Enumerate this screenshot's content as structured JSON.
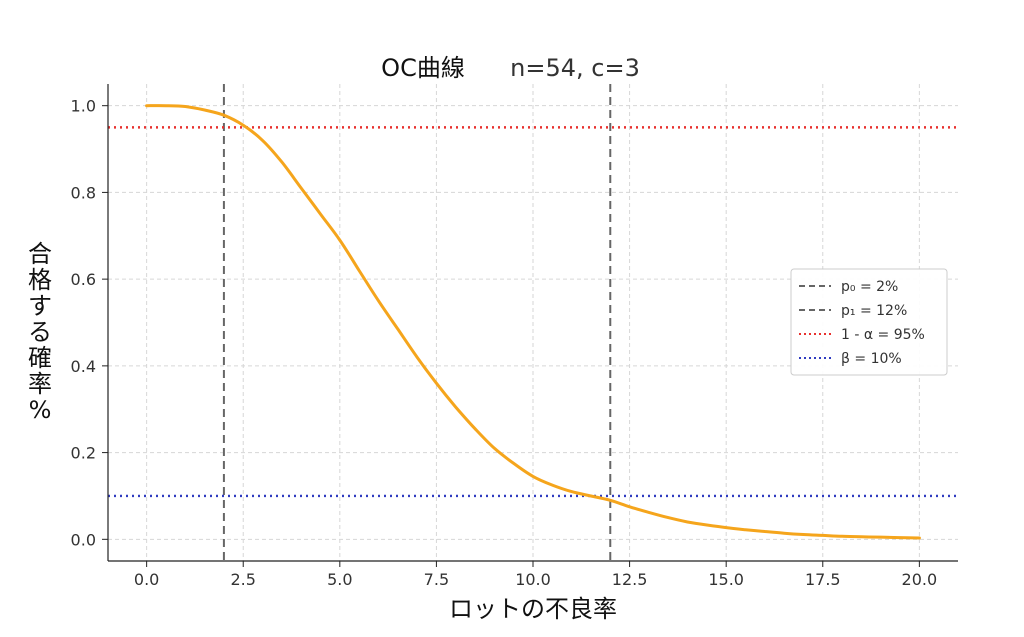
{
  "chart_data": {
    "type": "line",
    "title": "OC曲線",
    "subtitle": "n=54, c=3",
    "xlabel": "ロットの不良率",
    "ylabel": "合格する確率%",
    "xlim": [
      -1.0,
      21.0
    ],
    "ylim": [
      -0.05,
      1.05
    ],
    "xticks": [
      0.0,
      2.5,
      5.0,
      7.5,
      10.0,
      12.5,
      15.0,
      17.5,
      20.0
    ],
    "xtick_labels": [
      "0.0",
      "2.5",
      "5.0",
      "7.5",
      "10.0",
      "12.5",
      "15.0",
      "17.5",
      "20.0"
    ],
    "yticks": [
      0.0,
      0.2,
      0.4,
      0.6,
      0.8,
      1.0
    ],
    "ytick_labels": [
      "0.0",
      "0.2",
      "0.4",
      "0.6",
      "0.8",
      "1.0"
    ],
    "grid": true,
    "legend_position": "center-right",
    "series": [
      {
        "color": "#f5a51c",
        "x": [
          0,
          0.5,
          1,
          1.5,
          2,
          2.5,
          3,
          3.5,
          4,
          4.5,
          5,
          5.5,
          6,
          6.5,
          7,
          7.5,
          8,
          8.5,
          9,
          9.5,
          10,
          10.5,
          11,
          11.5,
          12,
          12.5,
          13,
          13.5,
          14,
          14.5,
          15,
          15.5,
          16,
          16.5,
          17,
          17.5,
          18,
          18.5,
          19,
          19.5,
          20
        ],
        "y": [
          1.0,
          1.0,
          0.998,
          0.99,
          0.978,
          0.955,
          0.92,
          0.87,
          0.81,
          0.75,
          0.69,
          0.62,
          0.55,
          0.485,
          0.42,
          0.36,
          0.305,
          0.255,
          0.21,
          0.175,
          0.145,
          0.125,
          0.11,
          0.1,
          0.09,
          0.075,
          0.062,
          0.05,
          0.04,
          0.033,
          0.027,
          0.022,
          0.018,
          0.014,
          0.011,
          0.009,
          0.007,
          0.006,
          0.005,
          0.004,
          0.003
        ]
      }
    ],
    "reference_lines": [
      {
        "orientation": "vertical",
        "value": 2,
        "color": "#666666",
        "style": "dashed",
        "label": "p₀ = 2%"
      },
      {
        "orientation": "vertical",
        "value": 12,
        "color": "#666666",
        "style": "dashed",
        "label": "p₁ = 12%"
      },
      {
        "orientation": "horizontal",
        "value": 0.95,
        "color": "#e8302e",
        "style": "dotted",
        "label": "1 - α = 95%"
      },
      {
        "orientation": "horizontal",
        "value": 0.1,
        "color": "#2f3bc0",
        "style": "dotted",
        "label": "β = 10%"
      }
    ]
  }
}
